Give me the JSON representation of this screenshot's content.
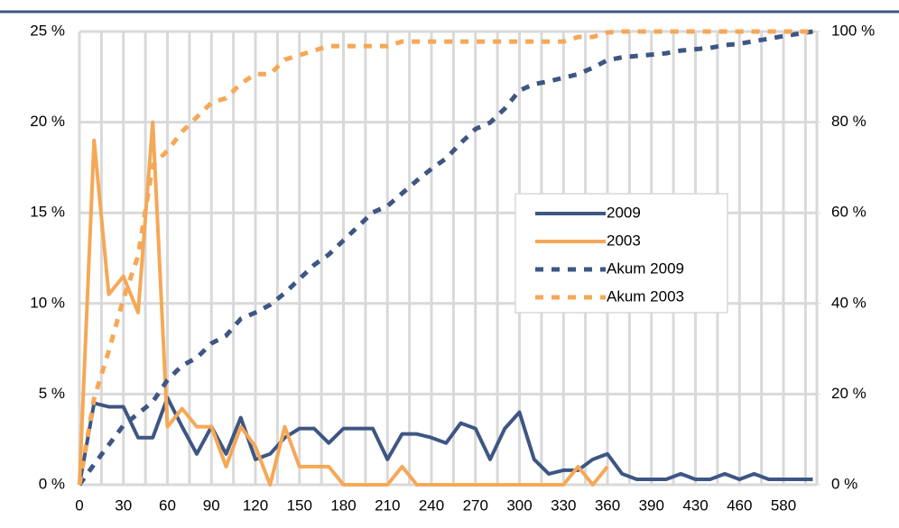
{
  "chart_data": {
    "type": "line",
    "categories": [
      "0",
      null,
      null,
      "30",
      null,
      null,
      "60",
      null,
      null,
      "90",
      null,
      null,
      "120",
      null,
      null,
      "150",
      null,
      null,
      "180",
      null,
      null,
      "210",
      null,
      null,
      "240",
      null,
      null,
      "270",
      null,
      null,
      "300",
      null,
      null,
      "330",
      null,
      null,
      "360",
      null,
      null,
      "390",
      null,
      null,
      "430",
      null,
      null,
      "460",
      null,
      null,
      "580",
      null,
      null
    ],
    "ylim": [
      0,
      25
    ],
    "yticks": [
      {
        "value": 0,
        "label": "0 %"
      },
      {
        "value": 5,
        "label": "5 %"
      },
      {
        "value": 10,
        "label": "10 %"
      },
      {
        "value": 15,
        "label": "15 %"
      },
      {
        "value": 20,
        "label": "20 %"
      },
      {
        "value": 25,
        "label": "25 %"
      }
    ],
    "y2lim": [
      0,
      100
    ],
    "y2ticks": [
      {
        "value": 0,
        "label": "0 %"
      },
      {
        "value": 20,
        "label": "20 %"
      },
      {
        "value": 40,
        "label": "40 %"
      },
      {
        "value": 60,
        "label": "60 %"
      },
      {
        "value": 80,
        "label": "80 %"
      },
      {
        "value": 100,
        "label": "100 %"
      }
    ],
    "grid": true,
    "legend": "center-right",
    "series": [
      {
        "name": "2009",
        "color": "#3e5683",
        "dashed": false,
        "values": [
          0,
          4.5,
          4.3,
          4.3,
          2.6,
          2.6,
          4.8,
          3.2,
          1.7,
          3.2,
          1.7,
          3.7,
          1.4,
          1.7,
          2.6,
          3.1,
          3.1,
          2.3,
          3.1,
          3.1,
          3.1,
          1.4,
          2.8,
          2.8,
          2.6,
          2.3,
          3.4,
          3.1,
          1.4,
          3.1,
          4.0,
          1.4,
          0.6,
          0.8,
          0.8,
          1.4,
          1.7,
          0.6,
          0.3,
          0.3,
          0.3,
          0.6,
          0.3,
          0.3,
          0.6,
          0.3,
          0.6,
          0.3,
          0.3,
          0.3,
          0.3
        ]
      },
      {
        "name": "2003",
        "color": "#f5a857",
        "dashed": false,
        "values": [
          0,
          19,
          10.5,
          11.5,
          9.5,
          20,
          3.2,
          4.2,
          3.2,
          3.2,
          1.0,
          3.2,
          2.1,
          0,
          3.2,
          1.0,
          1.0,
          1.0,
          0,
          0,
          0,
          0,
          1.0,
          0,
          0,
          0,
          0,
          0,
          0,
          0,
          0,
          0,
          0,
          0,
          1.0,
          0,
          1.0,
          null,
          null,
          null,
          null,
          null,
          null,
          null,
          null,
          null,
          null,
          null,
          null,
          null,
          null
        ]
      },
      {
        "name": "Akum 2009",
        "color": "#3e5683",
        "dashed": true,
        "axis": "y2",
        "values": [
          0,
          4.5,
          8.8,
          13.1,
          15.7,
          18.3,
          23.1,
          26.3,
          28,
          31.2,
          32.9,
          36.6,
          38,
          39.7,
          42.3,
          45.4,
          48.5,
          50.8,
          53.9,
          57,
          60.1,
          61.5,
          64.3,
          67.1,
          69.7,
          72,
          75.4,
          78.5,
          79.9,
          83,
          87,
          88.4,
          89,
          89.8,
          90.6,
          92,
          93.7,
          94.3,
          94.6,
          94.9,
          95.2,
          95.8,
          96.1,
          96.4,
          97,
          97.3,
          97.9,
          98.4,
          99,
          99.5,
          100
        ]
      },
      {
        "name": "Akum 2003",
        "color": "#f5a857",
        "dashed": true,
        "axis": "y2",
        "values": [
          0,
          19,
          29.5,
          41,
          50.5,
          70.5,
          73.7,
          77.9,
          81.1,
          84.3,
          85.3,
          88.5,
          90.6,
          90.6,
          93.8,
          94.8,
          95.8,
          96.8,
          96.8,
          96.8,
          96.8,
          96.8,
          97.8,
          97.8,
          97.8,
          97.8,
          97.8,
          97.8,
          97.8,
          97.8,
          97.8,
          97.8,
          97.8,
          97.8,
          98.8,
          98.8,
          99.8,
          100,
          100,
          100,
          100,
          100,
          100,
          100,
          100,
          100,
          100,
          100,
          100,
          100,
          100
        ]
      }
    ]
  }
}
